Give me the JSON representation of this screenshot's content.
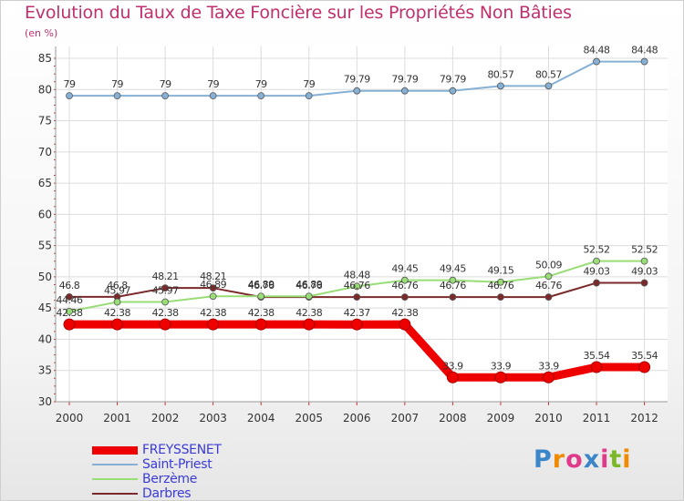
{
  "chart_data": {
    "type": "line",
    "title": "Evolution du Taux de Taxe Foncière sur les Propriétés Non Bâties",
    "ylabel": "(en %)",
    "xlabel": "",
    "ylim": [
      30,
      85
    ],
    "yticks": [
      30,
      35,
      40,
      45,
      50,
      55,
      60,
      65,
      70,
      75,
      80,
      85
    ],
    "categories": [
      "2000",
      "2001",
      "2002",
      "2003",
      "2004",
      "2005",
      "2006",
      "2007",
      "2008",
      "2009",
      "2010",
      "2011",
      "2012"
    ],
    "grid": true,
    "legend_position": "bottom-left",
    "series": [
      {
        "name": "FREYSSENET",
        "color": "#ee0000",
        "values": [
          42.38,
          42.38,
          42.38,
          42.38,
          42.38,
          42.38,
          42.37,
          42.38,
          33.9,
          33.9,
          33.9,
          35.54,
          35.54
        ],
        "labels": [
          "42.38",
          "42.38",
          "42.38",
          "42.38",
          "42.38",
          "42.38",
          "42.37",
          "42.38",
          "33.9",
          "33.9",
          "33.9",
          "35.54",
          "35.54"
        ]
      },
      {
        "name": "Saint-Priest",
        "color": "#86b0d4",
        "values": [
          79,
          79,
          79,
          79,
          79,
          79,
          79.79,
          79.79,
          79.79,
          80.57,
          80.57,
          84.48,
          84.48
        ],
        "labels": [
          "79",
          "79",
          "79",
          "79",
          "79",
          "79",
          "79.79",
          "79.79",
          "79.79",
          "80.57",
          "80.57",
          "84.48",
          "84.48"
        ]
      },
      {
        "name": "Berzème",
        "color": "#99dd77",
        "values": [
          44.46,
          45.97,
          45.97,
          46.89,
          46.89,
          46.89,
          48.48,
          49.45,
          49.45,
          49.15,
          50.09,
          52.52,
          52.52
        ],
        "labels": [
          "44.46",
          "45.97",
          "45.97",
          "46.89",
          "46.89",
          "46.89",
          "48.48",
          "49.45",
          "49.45",
          "49.15",
          "50.09",
          "52.52",
          "52.52"
        ]
      },
      {
        "name": "Darbres",
        "color": "#7a2a2a",
        "values": [
          46.8,
          46.8,
          48.21,
          48.21,
          46.76,
          46.76,
          46.76,
          46.76,
          46.76,
          46.76,
          46.76,
          49.03,
          49.03
        ],
        "labels": [
          "46.8",
          "46.8",
          "48.21",
          "48.21",
          "46.76",
          "46.76",
          "46.76",
          "46.76",
          "46.76",
          "46.76",
          "46.76",
          "49.03",
          "49.03"
        ]
      }
    ]
  },
  "logo": {
    "text": "Proxiti",
    "colors": [
      "#3a86c8",
      "#f08a00",
      "#e03a8a",
      "#3a86c8",
      "#e03a8a",
      "#7ab828",
      "#f08a00"
    ]
  }
}
